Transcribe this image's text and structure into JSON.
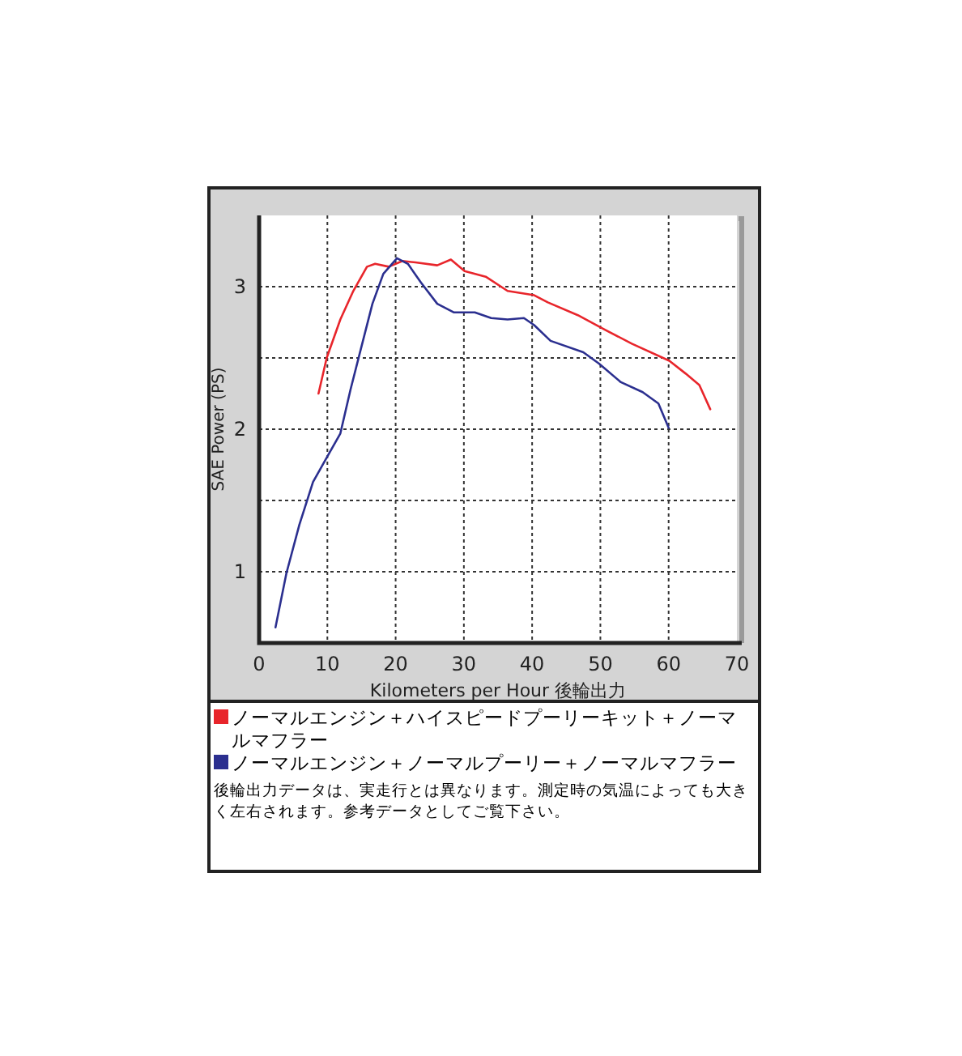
{
  "chart_data": {
    "type": "line",
    "xlabel": "Kilometers per Hour 後輪出力",
    "ylabel": "SAE Power (PS)",
    "xlim": [
      0,
      70
    ],
    "ylim": [
      0.5,
      3.5
    ],
    "xticks": [
      0,
      10,
      20,
      30,
      40,
      50,
      60,
      70
    ],
    "yticks": [
      1,
      {
        "value": 1.5,
        "label": null
      },
      2,
      {
        "value": 2.5,
        "label": null
      },
      3
    ],
    "grid": true,
    "legend": "bottom",
    "line_style": "solid",
    "marker": "none",
    "series": [
      {
        "name": "ノーマルエンジン＋ハイスピードプーリーキット＋ノーマルマフラー",
        "color": "#e8252b",
        "x": [
          8.7,
          9.9,
          11.9,
          13.8,
          15.8,
          17.0,
          19.0,
          21.0,
          22.9,
          26.1,
          28.1,
          30.1,
          33.2,
          36.4,
          40.3,
          42.3,
          46.7,
          50.6,
          54.6,
          60.1,
          62.5,
          64.5,
          66.1
        ],
        "values": [
          2.25,
          2.5,
          2.77,
          2.97,
          3.14,
          3.16,
          3.14,
          3.18,
          3.17,
          3.15,
          3.19,
          3.11,
          3.07,
          2.97,
          2.94,
          2.89,
          2.8,
          2.7,
          2.6,
          2.48,
          2.39,
          2.31,
          2.14
        ]
      },
      {
        "name": "ノーマルエンジン＋ノーマルプーリー＋ノーマルマフラー",
        "color": "#2b2f8f",
        "x": [
          2.4,
          4.0,
          5.9,
          7.9,
          9.9,
          11.9,
          13.4,
          15.0,
          16.6,
          18.2,
          20.2,
          21.8,
          23.7,
          26.1,
          28.5,
          31.6,
          34.0,
          36.4,
          38.8,
          40.3,
          42.7,
          47.5,
          49.8,
          53.0,
          56.2,
          58.5,
          60.0
        ],
        "values": [
          0.61,
          0.99,
          1.33,
          1.63,
          1.8,
          1.97,
          2.28,
          2.58,
          2.88,
          3.09,
          3.2,
          3.16,
          3.03,
          2.88,
          2.82,
          2.82,
          2.78,
          2.77,
          2.78,
          2.73,
          2.62,
          2.54,
          2.46,
          2.33,
          2.26,
          2.18,
          2.01
        ]
      }
    ],
    "annotations": [
      "後輪出力データは、実走行とは異なります。測定時の気温によっても大きく左右されます。参考データとしてご覧下さい。"
    ]
  }
}
